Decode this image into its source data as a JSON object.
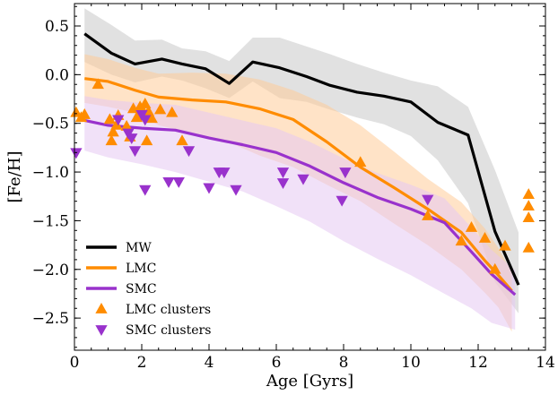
{
  "chart_data": {
    "type": "line",
    "title": "",
    "xlabel": "Age [Gyrs]",
    "ylabel": "[Fe/H]",
    "xlim": [
      0,
      14
    ],
    "ylim": [
      -2.83,
      0.73
    ],
    "xticks": [
      0,
      2,
      4,
      6,
      8,
      10,
      12,
      14
    ],
    "xtick_labels": [
      "0",
      "2",
      "4",
      "6",
      "8",
      "10",
      "12",
      "14"
    ],
    "yticks": [
      0.5,
      0.0,
      -0.5,
      -1.0,
      -1.5,
      -2.0,
      -2.5
    ],
    "ytick_labels": [
      "0.5",
      "0.0",
      "−0.5",
      "−1.0",
      "−1.5",
      "−2.0",
      "−2.5"
    ],
    "grid": false,
    "legend_position": "bottom-left",
    "series": [
      {
        "name": "MW",
        "color": "#000000",
        "band_color": "#c8c8c8",
        "x": [
          0.3,
          1.1,
          1.8,
          2.6,
          3.2,
          3.9,
          4.6,
          5.3,
          6.1,
          6.9,
          7.6,
          8.4,
          9.2,
          10.0,
          10.8,
          11.7,
          12.5,
          13.2
        ],
        "y": [
          0.42,
          0.22,
          0.11,
          0.16,
          0.11,
          0.06,
          -0.09,
          0.13,
          0.07,
          -0.02,
          -0.11,
          -0.18,
          -0.22,
          -0.28,
          -0.49,
          -0.62,
          -1.61,
          -2.16
        ],
        "upper": [
          0.68,
          0.51,
          0.35,
          0.36,
          0.27,
          0.24,
          0.14,
          0.38,
          0.38,
          0.29,
          0.21,
          0.11,
          0.02,
          -0.06,
          -0.12,
          -0.33,
          -0.98,
          -1.62
        ],
        "lower": [
          0.13,
          0.0,
          -0.08,
          -0.02,
          -0.06,
          -0.14,
          -0.24,
          -0.07,
          -0.24,
          -0.28,
          -0.36,
          -0.44,
          -0.51,
          -0.63,
          -0.88,
          -1.32,
          -2.13,
          -2.45
        ]
      },
      {
        "name": "LMC",
        "color": "#ff8c00",
        "band_color": "#ffcc99",
        "x": [
          0.3,
          1.0,
          1.8,
          2.5,
          3.5,
          4.5,
          5.5,
          6.5,
          7.5,
          8.5,
          9.5,
          10.5,
          11.5,
          12.2,
          12.6,
          13.0
        ],
        "y": [
          -0.04,
          -0.07,
          -0.16,
          -0.23,
          -0.26,
          -0.28,
          -0.35,
          -0.46,
          -0.69,
          -0.95,
          -1.16,
          -1.38,
          -1.62,
          -1.91,
          -2.06,
          -2.22
        ],
        "upper": [
          0.21,
          0.16,
          0.07,
          0.01,
          0.02,
          0.01,
          -0.05,
          -0.16,
          -0.31,
          -0.52,
          -0.79,
          -1.07,
          -1.31,
          -1.58,
          -1.78,
          -2.03
        ],
        "lower": [
          -0.29,
          -0.33,
          -0.39,
          -0.52,
          -0.6,
          -0.68,
          -0.83,
          -0.95,
          -1.13,
          -1.3,
          -1.53,
          -1.75,
          -2.0,
          -2.24,
          -2.39,
          -2.64
        ]
      },
      {
        "name": "SMC",
        "color": "#9932cc",
        "band_color": "#e5c8f2",
        "x": [
          0.3,
          1.0,
          2.0,
          3.0,
          4.0,
          5.0,
          6.0,
          7.0,
          8.0,
          9.0,
          10.0,
          11.0,
          11.8,
          12.4,
          13.1
        ],
        "y": [
          -0.47,
          -0.52,
          -0.55,
          -0.57,
          -0.65,
          -0.72,
          -0.8,
          -0.94,
          -1.11,
          -1.26,
          -1.38,
          -1.52,
          -1.82,
          -2.05,
          -2.26
        ],
        "upper": [
          -0.22,
          -0.26,
          -0.29,
          -0.31,
          -0.39,
          -0.47,
          -0.55,
          -0.69,
          -0.86,
          -1.01,
          -1.13,
          -1.27,
          -1.57,
          -1.8,
          -2.01
        ],
        "lower": [
          -0.78,
          -0.85,
          -0.92,
          -1.0,
          -1.1,
          -1.2,
          -1.35,
          -1.51,
          -1.71,
          -1.89,
          -2.06,
          -2.25,
          -2.4,
          -2.55,
          -2.62
        ]
      }
    ],
    "scatter": [
      {
        "name": "LMC clusters",
        "marker": "triangle-up",
        "color": "#ff8c00",
        "x": [
          0.05,
          0.2,
          0.3,
          0.7,
          1.05,
          1.1,
          1.15,
          1.25,
          1.3,
          1.55,
          1.65,
          1.75,
          1.85,
          1.95,
          2.05,
          2.1,
          2.15,
          2.2,
          2.3,
          2.55,
          2.9,
          3.2,
          8.5,
          10.5,
          11.5,
          11.8,
          12.2,
          12.5,
          12.8,
          13.5,
          13.5,
          13.5,
          13.5
        ],
        "y": [
          -0.39,
          -0.44,
          -0.41,
          -0.1,
          -0.46,
          -0.68,
          -0.59,
          -0.52,
          -0.42,
          -0.53,
          -0.64,
          -0.35,
          -0.44,
          -0.33,
          -0.38,
          -0.3,
          -0.68,
          -0.38,
          -0.45,
          -0.36,
          -0.39,
          -0.68,
          -0.9,
          -1.45,
          -1.71,
          -1.57,
          -1.68,
          -2.0,
          -1.76,
          -1.23,
          -1.35,
          -1.47,
          -1.78
        ]
      },
      {
        "name": "SMC clusters",
        "marker": "triangle-down",
        "color": "#9932cc",
        "x": [
          0.05,
          1.3,
          1.6,
          1.7,
          1.8,
          2.0,
          2.1,
          2.1,
          2.8,
          3.1,
          3.4,
          4.0,
          4.3,
          4.45,
          4.8,
          6.2,
          6.2,
          6.8,
          7.95,
          8.05,
          10.5
        ],
        "y": [
          -0.8,
          -0.46,
          -0.6,
          -0.65,
          -0.78,
          -0.41,
          -0.46,
          -1.18,
          -1.1,
          -1.1,
          -0.78,
          -1.16,
          -1.0,
          -1.0,
          -1.18,
          -1.0,
          -1.11,
          -1.07,
          -1.29,
          -1.0,
          -1.28
        ]
      }
    ],
    "legend": [
      {
        "label": "MW",
        "kind": "line",
        "color": "#000000"
      },
      {
        "label": "LMC",
        "kind": "line",
        "color": "#ff8c00"
      },
      {
        "label": "SMC",
        "kind": "line",
        "color": "#9932cc"
      },
      {
        "label": "LMC clusters",
        "kind": "triangle-up",
        "color": "#ff8c00"
      },
      {
        "label": "SMC clusters",
        "kind": "triangle-down",
        "color": "#9932cc"
      }
    ]
  }
}
